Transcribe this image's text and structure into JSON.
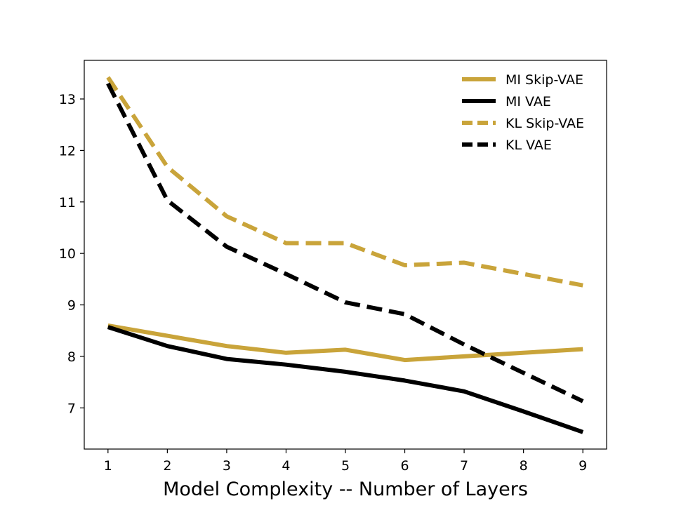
{
  "chart_data": {
    "type": "line",
    "title": "",
    "xlabel": "Model Complexity -- Number of Layers",
    "ylabel": "",
    "x": [
      1,
      2,
      3,
      4,
      5,
      6,
      7,
      8,
      9
    ],
    "xlim": [
      0.6,
      9.4
    ],
    "ylim": [
      6.2,
      13.75
    ],
    "xticks": [
      "1",
      "2",
      "3",
      "4",
      "5",
      "6",
      "7",
      "8",
      "9"
    ],
    "yticks": [
      "7",
      "8",
      "9",
      "10",
      "11",
      "12",
      "13"
    ],
    "grid": false,
    "legend_position": "top-right",
    "series": [
      {
        "name": "MI Skip-VAE",
        "color": "#C9A43A",
        "dashed": false,
        "values": [
          8.6,
          8.4,
          8.2,
          8.07,
          8.13,
          7.93,
          8.0,
          8.07,
          8.14
        ]
      },
      {
        "name": "MI VAE",
        "color": "#000000",
        "dashed": false,
        "values": [
          8.57,
          8.2,
          7.95,
          7.84,
          7.7,
          7.53,
          7.32,
          6.93,
          6.53
        ]
      },
      {
        "name": "KL Skip-VAE",
        "color": "#C9A43A",
        "dashed": true,
        "values": [
          13.42,
          11.68,
          10.72,
          10.2,
          10.2,
          9.77,
          9.82,
          9.6,
          9.38
        ]
      },
      {
        "name": "KL VAE",
        "color": "#000000",
        "dashed": true,
        "values": [
          13.3,
          11.03,
          10.13,
          9.6,
          9.05,
          8.82,
          8.23,
          7.68,
          7.13
        ]
      }
    ]
  }
}
